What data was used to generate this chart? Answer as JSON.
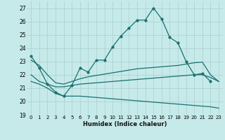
{
  "xlabel": "Humidex (Indice chaleur)",
  "xlim": [
    -0.5,
    23.5
  ],
  "ylim": [
    19,
    27.5
  ],
  "yticks": [
    19,
    20,
    21,
    22,
    23,
    24,
    25,
    26,
    27
  ],
  "xticks": [
    0,
    1,
    2,
    3,
    4,
    5,
    6,
    7,
    8,
    9,
    10,
    11,
    12,
    13,
    14,
    15,
    16,
    17,
    18,
    19,
    20,
    21,
    22,
    23
  ],
  "xtick_labels": [
    "0",
    "1",
    "2",
    "3",
    "4",
    "5",
    "6",
    "7",
    "8",
    "9",
    "10",
    "11",
    "12",
    "13",
    "14",
    "15",
    "16",
    "17",
    "18",
    "19",
    "20",
    "21",
    "22",
    "23"
  ],
  "background_color": "#c6eaea",
  "grid_color": "#aacece",
  "line_color": "#1a7070",
  "line_main": [
    23.4,
    22.5,
    21.3,
    20.7,
    20.4,
    21.2,
    22.5,
    22.2,
    23.1,
    23.1,
    24.1,
    24.9,
    25.5,
    26.1,
    26.1,
    27.0,
    26.2,
    24.8,
    24.4,
    23.0,
    22.0,
    22.1,
    21.5,
    null
  ],
  "line_upper": [
    23.1,
    22.7,
    22.0,
    21.4,
    21.3,
    21.5,
    21.7,
    21.85,
    21.95,
    22.05,
    22.15,
    22.25,
    22.35,
    22.45,
    22.5,
    22.55,
    22.6,
    22.65,
    22.7,
    22.8,
    22.9,
    22.95,
    22.0,
    21.5
  ],
  "line_mid": [
    22.0,
    21.5,
    21.3,
    21.1,
    21.1,
    21.2,
    21.3,
    21.35,
    21.4,
    21.45,
    21.5,
    21.55,
    21.6,
    21.65,
    21.7,
    21.75,
    21.8,
    21.85,
    21.9,
    21.95,
    22.0,
    22.0,
    21.8,
    21.5
  ],
  "line_lower": [
    21.5,
    21.3,
    21.0,
    20.6,
    20.4,
    20.4,
    20.4,
    20.35,
    20.3,
    20.25,
    20.2,
    20.15,
    20.1,
    20.05,
    20.0,
    19.95,
    19.9,
    19.85,
    19.8,
    19.75,
    19.7,
    19.65,
    19.6,
    19.5
  ]
}
